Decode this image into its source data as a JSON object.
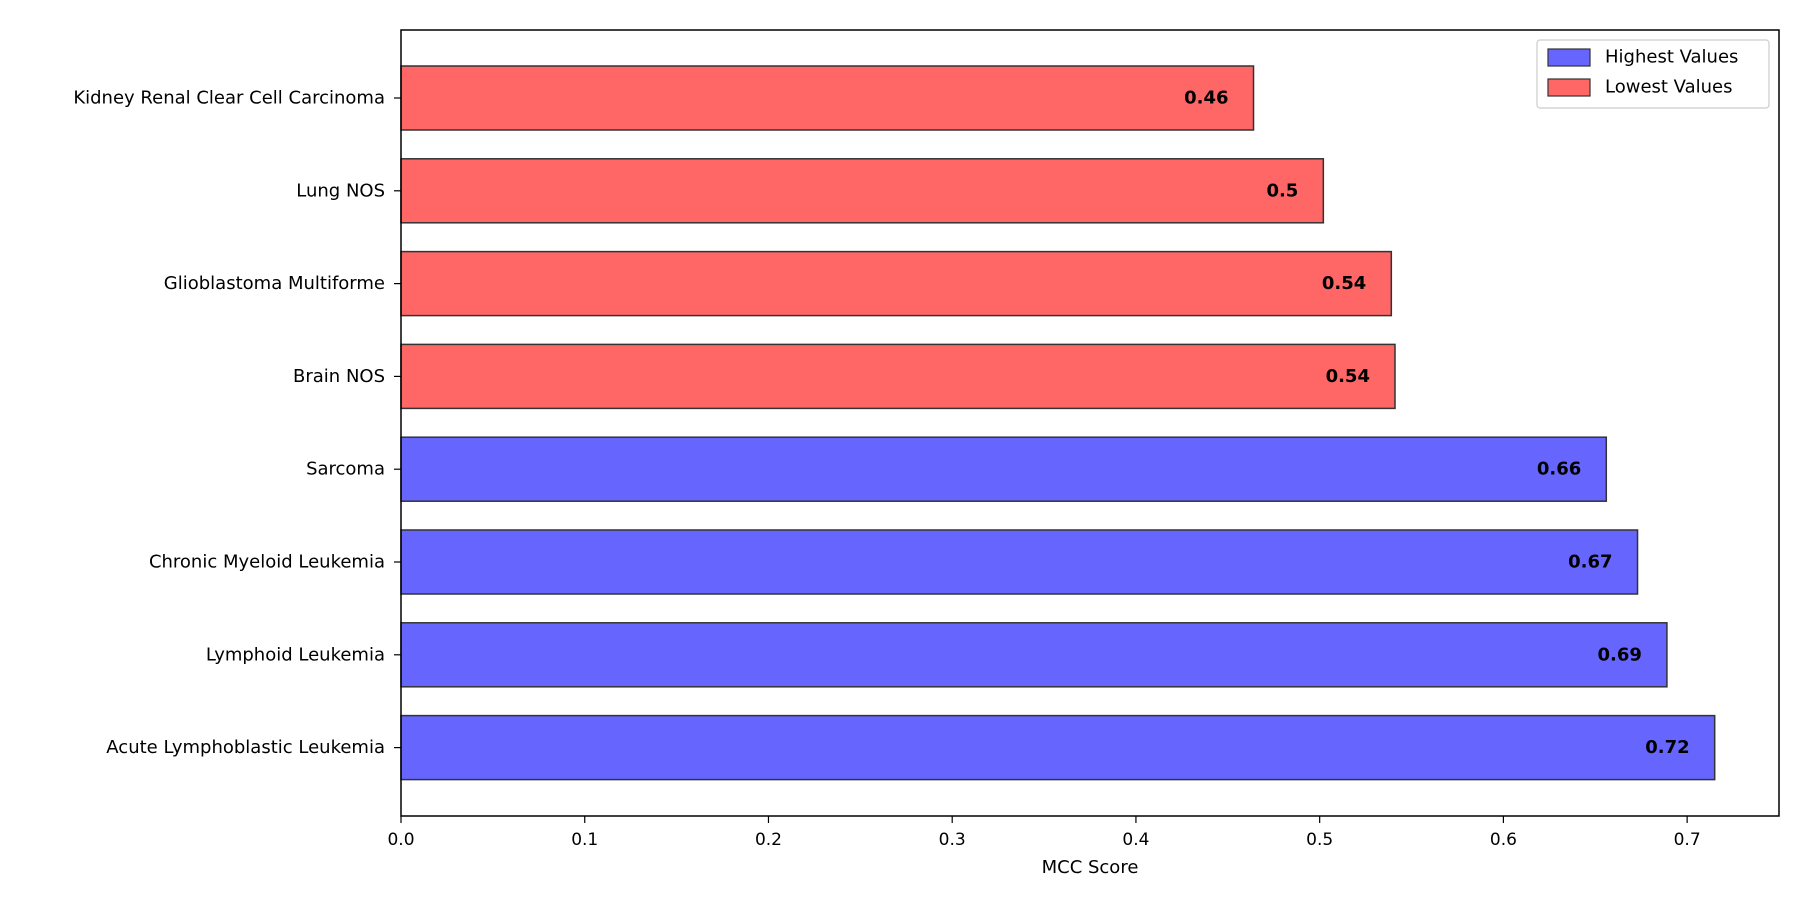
{
  "chart_data": {
    "type": "bar",
    "orientation": "horizontal",
    "title": "",
    "xlabel": "MCC Score",
    "ylabel": "",
    "xlim": [
      0,
      0.75
    ],
    "x_ticks": [
      "0.0",
      "0.1",
      "0.2",
      "0.3",
      "0.4",
      "0.5",
      "0.6",
      "0.7"
    ],
    "grid": false,
    "legend_position": "top-right",
    "legend": [
      {
        "label": "Highest Values",
        "color": "#6666ff"
      },
      {
        "label": "Lowest Values",
        "color": "#ff6666"
      }
    ],
    "bars": [
      {
        "category": "Kidney Renal Clear Cell Carcinoma",
        "value": 0.464,
        "label": "0.46",
        "group": "Lowest Values",
        "color": "#ff6666"
      },
      {
        "category": "Lung NOS",
        "value": 0.502,
        "label": "0.5",
        "group": "Lowest Values",
        "color": "#ff6666"
      },
      {
        "category": "Glioblastoma Multiforme",
        "value": 0.539,
        "label": "0.54",
        "group": "Lowest Values",
        "color": "#ff6666"
      },
      {
        "category": "Brain NOS",
        "value": 0.541,
        "label": "0.54",
        "group": "Lowest Values",
        "color": "#ff6666"
      },
      {
        "category": "Sarcoma",
        "value": 0.656,
        "label": "0.66",
        "group": "Highest Values",
        "color": "#6666ff"
      },
      {
        "category": "Chronic Myeloid Leukemia",
        "value": 0.673,
        "label": "0.67",
        "group": "Highest Values",
        "color": "#6666ff"
      },
      {
        "category": "Lymphoid Leukemia",
        "value": 0.689,
        "label": "0.69",
        "group": "Highest Values",
        "color": "#6666ff"
      },
      {
        "category": "Acute Lymphoblastic Leukemia",
        "value": 0.715,
        "label": "0.72",
        "group": "Highest Values",
        "color": "#6666ff"
      }
    ]
  }
}
